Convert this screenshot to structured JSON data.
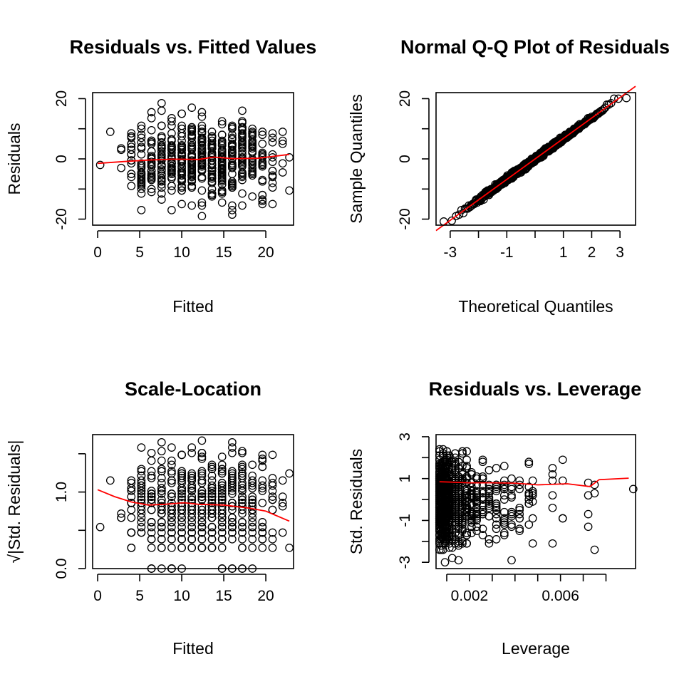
{
  "colors": {
    "points": "#000000",
    "smooth": "#ff0000",
    "background": "#ffffff"
  },
  "chart_data": [
    {
      "type": "scatter",
      "title": "Residuals vs. Fitted Values",
      "xlabel": "Fitted",
      "ylabel": "Residuals",
      "xlim": [
        -0.6,
        23.3
      ],
      "ylim": [
        -22,
        22
      ],
      "xticks": [
        0,
        5,
        10,
        15,
        20
      ],
      "yticks": [
        -20,
        -10,
        0,
        10,
        20
      ],
      "ytick_labels": [
        "-20",
        "",
        "0",
        "",
        "20"
      ],
      "grid": false,
      "point_spec": {
        "x_levels": [
          0.3,
          1.5,
          2.8,
          4,
          5.2,
          6.4,
          7.6,
          8.8,
          10,
          11.2,
          12.4,
          13.6,
          14.8,
          16,
          17.2,
          18.4,
          19.6,
          20.8,
          22,
          22.8
        ],
        "x_counts": [
          1,
          1,
          3,
          18,
          26,
          32,
          36,
          40,
          44,
          46,
          48,
          48,
          46,
          42,
          36,
          30,
          22,
          14,
          5,
          2
        ],
        "center": 0,
        "spread": 6.8,
        "range": [
          -20.8,
          20.2
        ],
        "seed": 11
      },
      "smooth_line": {
        "x": [
          0,
          3,
          6,
          9,
          12,
          13.8,
          16,
          19,
          22.8
        ],
        "y": [
          -1.5,
          -0.9,
          -0.4,
          -0.1,
          -0.2,
          0.6,
          0.1,
          0.2,
          1.5
        ]
      }
    },
    {
      "type": "scatter",
      "title": "Normal Q-Q Plot of Residuals",
      "xlabel": "Theoretical Quantiles",
      "ylabel": "Sample Quantiles",
      "xlim": [
        -3.5,
        3.55
      ],
      "ylim": [
        -22,
        22
      ],
      "xticks": [
        -3,
        -2,
        -1,
        0,
        1,
        2,
        3
      ],
      "xtick_labels": [
        "-3",
        "",
        "-1",
        "",
        "1",
        "2",
        "3"
      ],
      "yticks": [
        -20,
        -10,
        0,
        10,
        20
      ],
      "ytick_labels": [
        "-20",
        "",
        "0",
        "",
        "20"
      ],
      "grid": false,
      "qq_spec": {
        "n": 1000,
        "slope": 6.8,
        "intercept": 0,
        "min": -20.8,
        "max": 20.2,
        "seed": 23
      },
      "reference_line": {
        "x": [
          -3.5,
          3.55
        ],
        "y": [
          -23.8,
          24.1
        ]
      }
    },
    {
      "type": "scatter",
      "title": "Scale-Location",
      "xlabel": "Fitted",
      "ylabel": "√|Std. Residuals|",
      "xlim": [
        -0.6,
        23.3
      ],
      "ylim": [
        0,
        1.75
      ],
      "xticks": [
        0,
        5,
        10,
        15,
        20
      ],
      "yticks": [
        0,
        0.5,
        1,
        1.5
      ],
      "ytick_labels": [
        "0.0",
        "",
        "1.0",
        ""
      ],
      "grid": false,
      "point_spec": {
        "x_levels": [
          0.3,
          1.5,
          2.8,
          4,
          5.2,
          6.4,
          7.6,
          8.8,
          10,
          11.2,
          12.4,
          13.6,
          14.8,
          16,
          17.2,
          18.4,
          19.6,
          20.8,
          22,
          22.8
        ],
        "x_counts": [
          1,
          1,
          3,
          18,
          26,
          32,
          36,
          40,
          44,
          46,
          48,
          48,
          46,
          42,
          36,
          30,
          22,
          14,
          5,
          2
        ],
        "center": 0,
        "spread": 6.8,
        "range": [
          -20.8,
          20.2
        ],
        "seed": 11,
        "transform": "sqrt_abs_std"
      },
      "smooth_line": {
        "x": [
          0,
          2,
          4,
          6,
          8,
          10.3,
          12,
          15,
          18,
          20,
          22.8
        ],
        "y": [
          1.03,
          0.94,
          0.87,
          0.83,
          0.84,
          0.86,
          0.84,
          0.83,
          0.79,
          0.75,
          0.62
        ]
      }
    },
    {
      "type": "scatter",
      "title": "Residuals vs. Leverage",
      "xlabel": "Leverage",
      "ylabel": "Std. Residuals",
      "xlim": [
        0.00053,
        0.0093
      ],
      "ylim": [
        -3.3,
        3.1
      ],
      "xticks": [
        0.001,
        0.002,
        0.003,
        0.004,
        0.005,
        0.006,
        0.007,
        0.008
      ],
      "xtick_labels": [
        "",
        "0.002",
        "",
        "",
        "",
        "0.006",
        "",
        ""
      ],
      "yticks": [
        -3,
        -2,
        -1,
        0,
        1,
        2,
        3
      ],
      "ytick_labels": [
        "-3",
        "",
        "-1",
        "",
        "1",
        "",
        "3"
      ],
      "grid": false,
      "leverage_spec": {
        "levels": [
          0.00068,
          0.00076,
          0.00084,
          0.00092,
          0.00101,
          0.00112,
          0.00124,
          0.00137,
          0.00152,
          0.00169,
          0.00188,
          0.00209,
          0.00232,
          0.00258,
          0.00286,
          0.00318,
          0.00353,
          0.00385,
          0.0042,
          0.00461,
          0.00478,
          0.00565,
          0.0061,
          0.00722,
          0.0075,
          0.0092
        ],
        "counts": [
          110,
          100,
          95,
          90,
          80,
          70,
          60,
          50,
          44,
          38,
          34,
          30,
          26,
          22,
          20,
          18,
          16,
          12,
          10,
          10,
          8,
          6,
          4,
          4,
          3,
          1
        ],
        "spread": 1.0,
        "range": [
          -3.0,
          2.95
        ],
        "seed": 37
      },
      "smooth_line": {
        "x": [
          0.00068,
          0.002,
          0.003,
          0.004,
          0.005,
          0.0063,
          0.0073,
          0.0077,
          0.009
        ],
        "y": [
          0.85,
          0.8,
          0.8,
          0.78,
          0.7,
          0.75,
          0.62,
          0.95,
          1.02
        ]
      }
    }
  ]
}
